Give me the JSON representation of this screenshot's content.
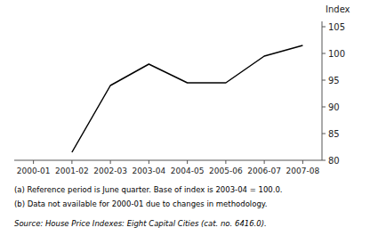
{
  "chart_data": {
    "type": "line",
    "categories": [
      "2000-01",
      "2001-02",
      "2002-03",
      "2003-04",
      "2004-05",
      "2005-06",
      "2006-07",
      "2007-08"
    ],
    "values": [
      null,
      81.5,
      94.0,
      98.0,
      94.5,
      94.5,
      99.5,
      101.5
    ],
    "color": "#000000",
    "y_label": "Index",
    "ylim": [
      80,
      106
    ],
    "yticks": [
      80,
      85,
      90,
      95,
      100,
      105
    ],
    "grid": false,
    "annotations": [
      "(a) Reference period is June quarter. Base of index is 2003-04 = 100.0.",
      "(b) Data not available for 2000-01 due to changes in methodology.",
      "Source: House Price Indexes: Eight Capital Cities (cat. no. 6416.0)."
    ]
  }
}
